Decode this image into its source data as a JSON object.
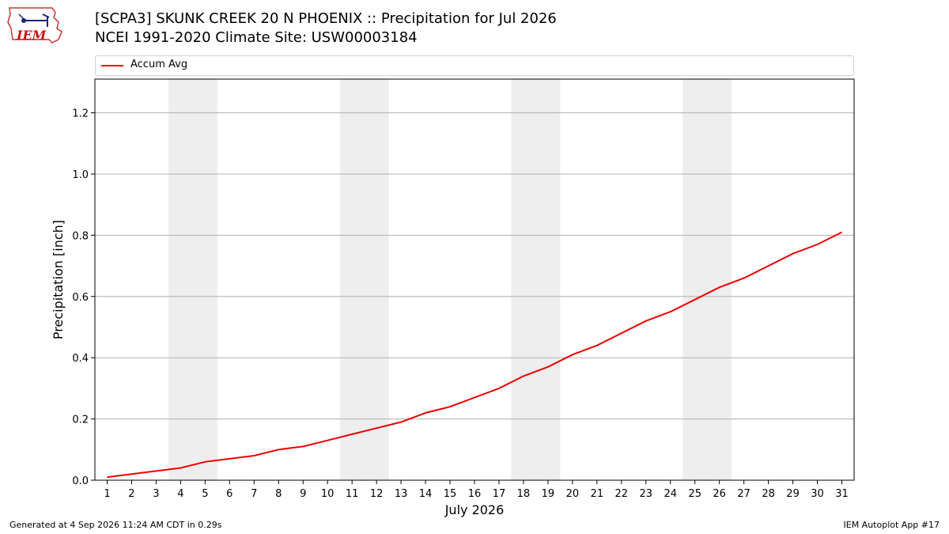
{
  "header": {
    "title_line1": "[SCPA3] SKUNK CREEK 20 N PHOENIX :: Precipitation for Jul 2026",
    "title_line2": "NCEI 1991-2020 Climate Site: USW00003184",
    "logo_text": "IEM"
  },
  "footer": {
    "generated": "Generated at 4 Sep 2026 11:24 AM CDT in 0.29s",
    "app": "IEM Autoplot App #17"
  },
  "chart_data": {
    "type": "line",
    "xlabel": "July 2026",
    "ylabel": "Precipitation [inch]",
    "x": [
      1,
      2,
      3,
      4,
      5,
      6,
      7,
      8,
      9,
      10,
      11,
      12,
      13,
      14,
      15,
      16,
      17,
      18,
      19,
      20,
      21,
      22,
      23,
      24,
      25,
      26,
      27,
      28,
      29,
      30,
      31
    ],
    "xlim": [
      0.5,
      31.5
    ],
    "ylim": [
      0,
      1.31
    ],
    "yticks": [
      0.0,
      0.2,
      0.4,
      0.6,
      0.8,
      1.0,
      1.2
    ],
    "ytick_labels": [
      "0.0",
      "0.2",
      "0.4",
      "0.6",
      "0.8",
      "1.0",
      "1.2"
    ],
    "grid": "horizontal",
    "legend_position": "top",
    "weekend_shading": [
      [
        4,
        5
      ],
      [
        11,
        12
      ],
      [
        18,
        19
      ],
      [
        25,
        26
      ]
    ],
    "series": [
      {
        "name": "Accum Avg",
        "color": "#ee0000",
        "values": [
          0.01,
          0.02,
          0.03,
          0.04,
          0.06,
          0.07,
          0.08,
          0.1,
          0.11,
          0.13,
          0.15,
          0.17,
          0.19,
          0.22,
          0.24,
          0.27,
          0.3,
          0.34,
          0.37,
          0.41,
          0.44,
          0.48,
          0.52,
          0.55,
          0.59,
          0.63,
          0.66,
          0.7,
          0.74,
          0.77,
          0.81
        ]
      }
    ]
  }
}
